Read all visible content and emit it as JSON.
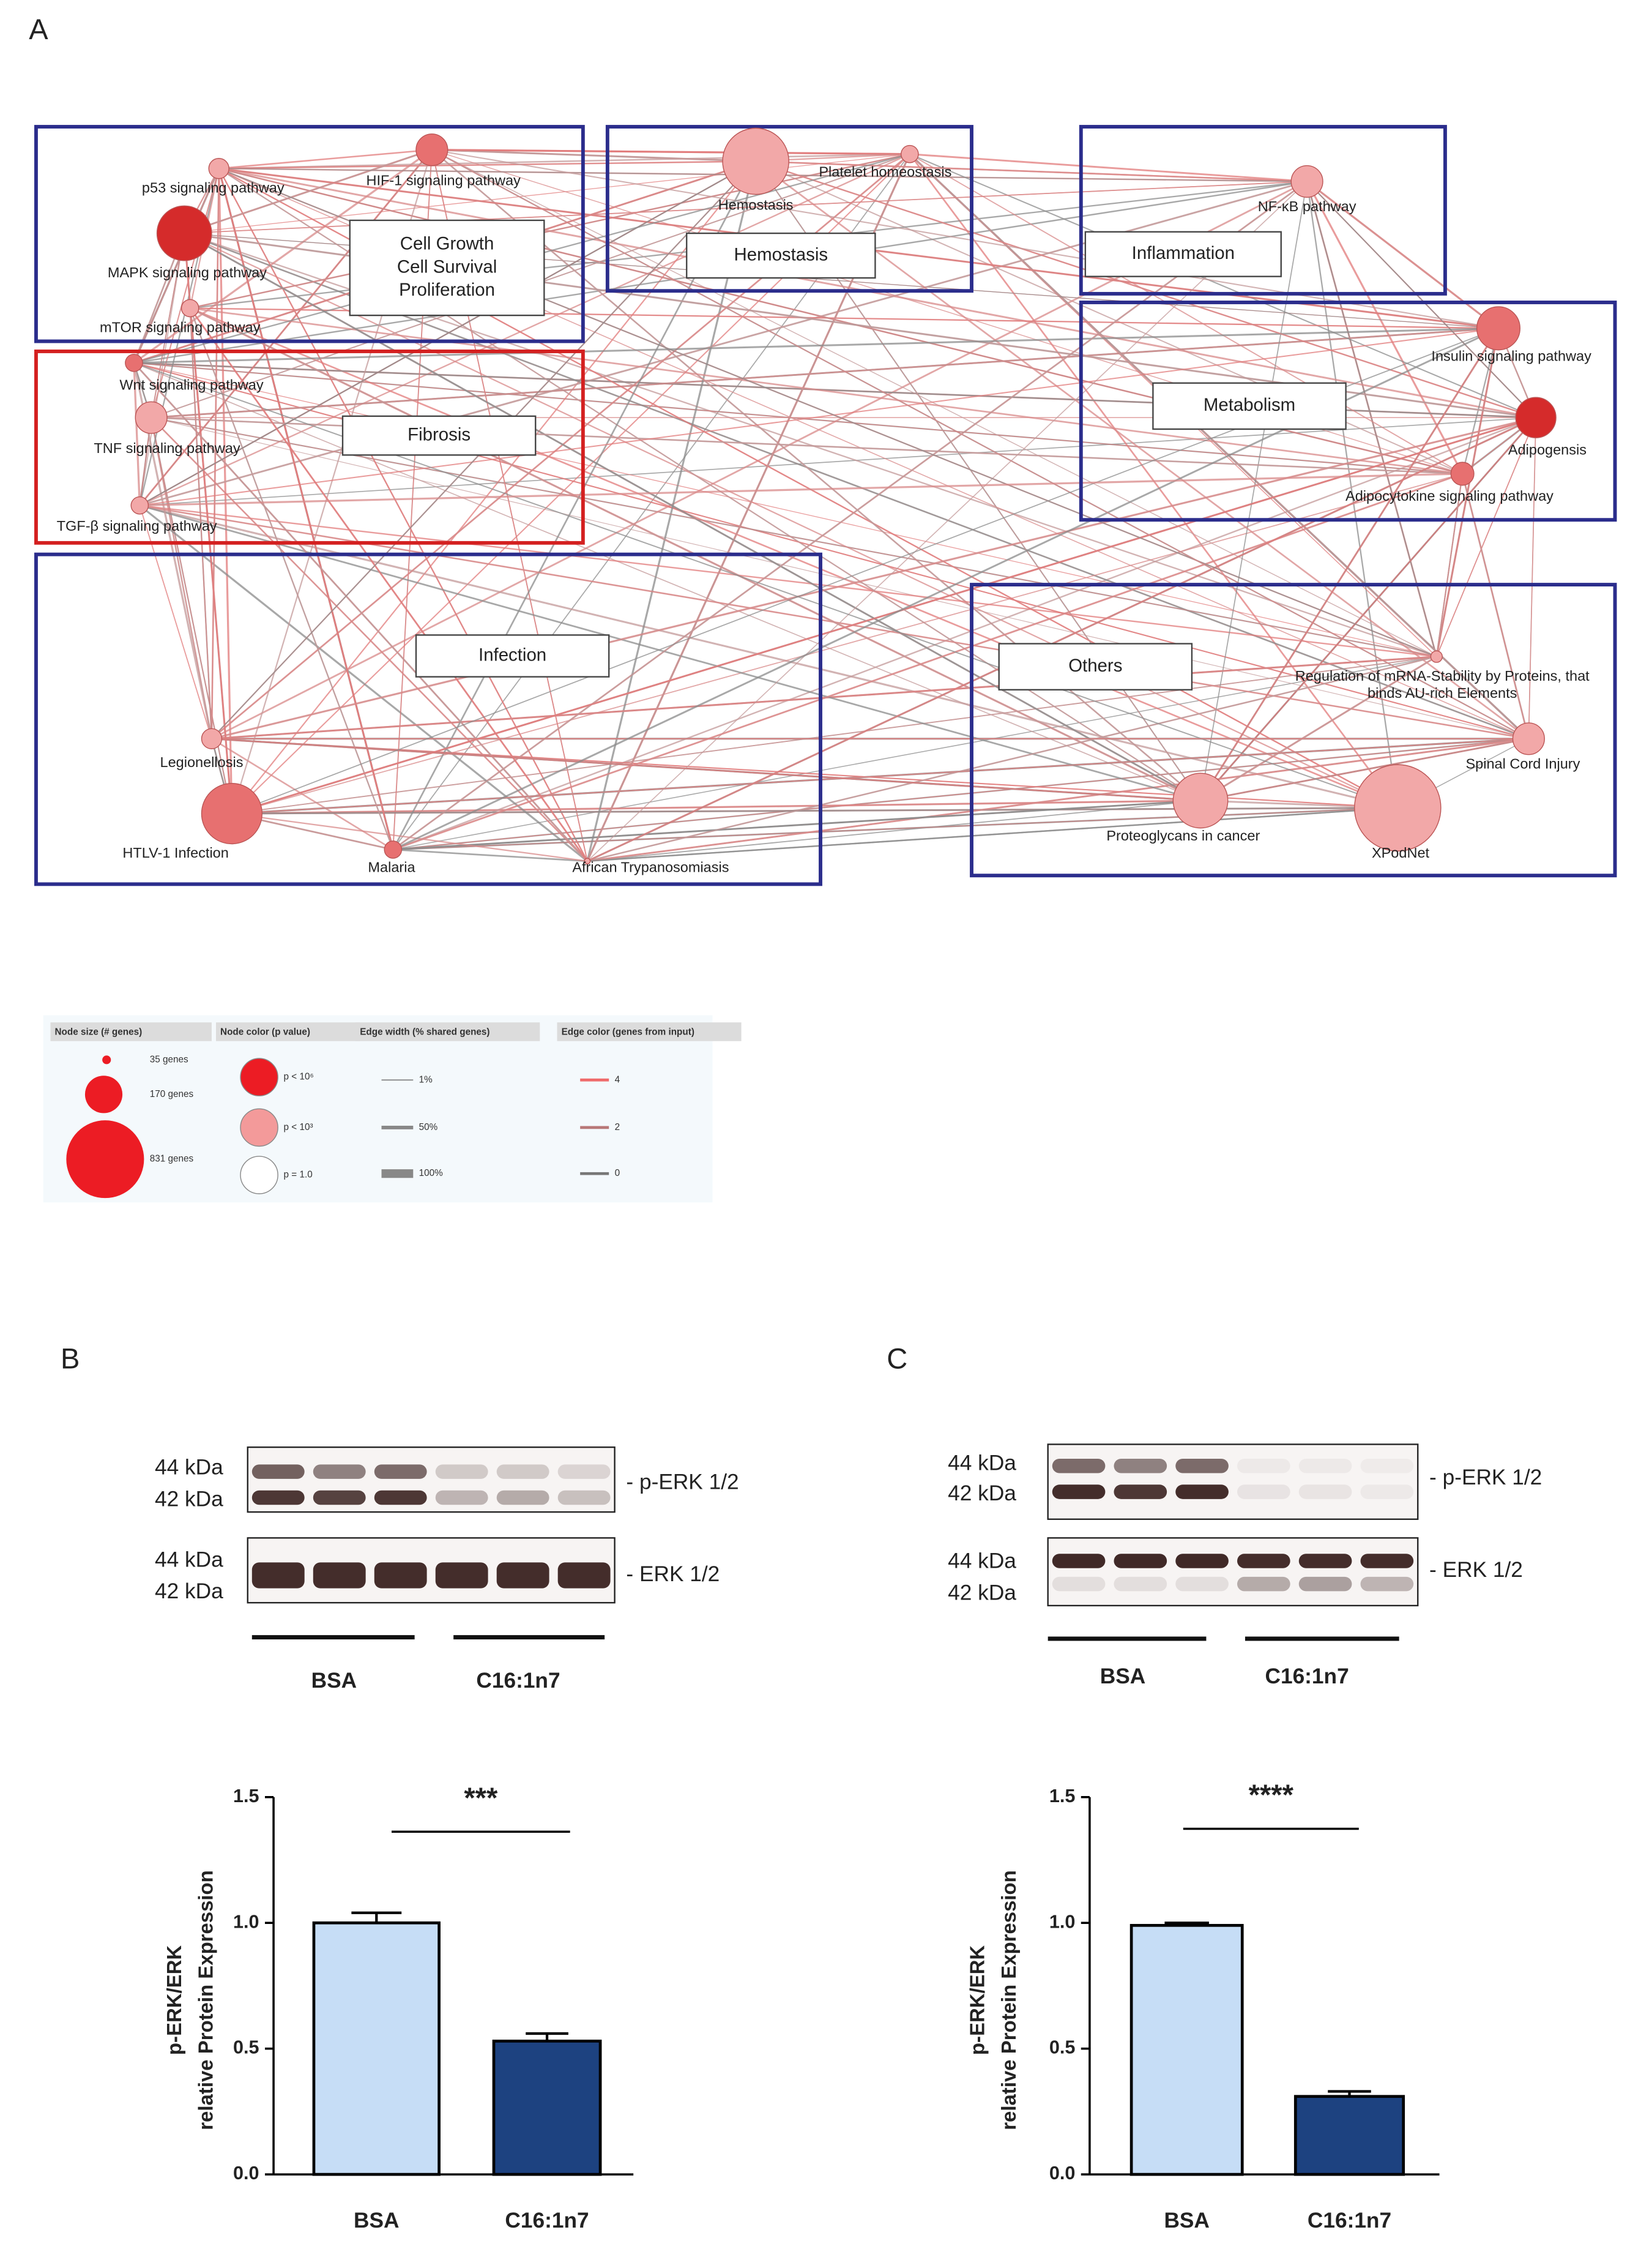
{
  "panel_labels": [
    "A",
    "B",
    "C"
  ],
  "network": {
    "groups": [
      {
        "lines": [
          "Cell Growth",
          "Cell Survival",
          "Proliferation"
        ]
      },
      {
        "lines": [
          "Hemostasis"
        ]
      },
      {
        "lines": [
          "Inflammation"
        ]
      },
      {
        "lines": [
          "Metabolism"
        ]
      },
      {
        "lines": [
          "Fibrosis"
        ]
      },
      {
        "lines": [
          "Infection"
        ]
      },
      {
        "lines": [
          "Others"
        ]
      }
    ],
    "nodes": [
      {
        "lines": [
          "p53 signaling pathway"
        ]
      },
      {
        "lines": [
          "HIF-1 signaling pathway"
        ]
      },
      {
        "lines": [
          "MAPK signaling pathway"
        ]
      },
      {
        "lines": [
          "mTOR signaling pathway"
        ]
      },
      {
        "lines": [
          "Wnt signaling pathway"
        ]
      },
      {
        "lines": [
          "TNF signaling pathway"
        ]
      },
      {
        "lines": [
          "TGF-β signaling pathway"
        ]
      },
      {
        "lines": [
          "Hemostasis"
        ]
      },
      {
        "lines": [
          "Platelet homeostasis"
        ]
      },
      {
        "lines": [
          "NF-κB pathway"
        ]
      },
      {
        "lines": [
          "Insulin signaling pathway"
        ]
      },
      {
        "lines": [
          "Adipogensis"
        ]
      },
      {
        "lines": [
          "Adipocytokine signaling pathway"
        ]
      },
      {
        "lines": [
          "Regulation of mRNA-Stability by Proteins, that",
          "binds AU-rich Elements"
        ]
      },
      {
        "lines": [
          "Spinal Cord Injury"
        ]
      },
      {
        "lines": [
          "Proteoglycans in cancer"
        ]
      },
      {
        "lines": [
          "XPodNet"
        ]
      },
      {
        "lines": [
          "Legionellosis"
        ]
      },
      {
        "lines": [
          "HTLV-1 Infection"
        ]
      },
      {
        "lines": [
          "Malaria"
        ]
      },
      {
        "lines": [
          "African Trypanosomiasis"
        ]
      }
    ]
  },
  "legend": {
    "headers": [
      "Node size (# genes)",
      "Node color (p value)",
      "Edge width (% shared genes)",
      "Edge color (genes from input)"
    ],
    "size": [
      "35 genes",
      "170 genes",
      "831 genes"
    ],
    "color": [
      "p < 10⁶",
      "p < 10³",
      "p = 1.0"
    ],
    "width": [
      "1%",
      "50%",
      "100%"
    ],
    "edge_color": [
      "4",
      "2",
      "0"
    ]
  },
  "blots": [
    {
      "markers": [
        "44 kDa",
        "42 kDa",
        "44 kDa",
        "42 kDa"
      ],
      "bands": [
        "- p-ERK 1/2",
        "- ERK 1/2"
      ],
      "groups": [
        "BSA",
        "C16:1n7"
      ]
    },
    {
      "markers": [
        "44 kDa",
        "42 kDa",
        "44 kDa",
        "42 kDa"
      ],
      "bands": [
        "- p-ERK 1/2",
        "- ERK 1/2"
      ],
      "groups": [
        "BSA",
        "C16:1n7"
      ]
    }
  ],
  "chart_data": [
    {
      "type": "bar",
      "ylabel": [
        "p-ERK/ERK",
        "relative Protein Expression"
      ],
      "categories": [
        "BSA",
        "C16:1n7"
      ],
      "values": [
        1.0,
        0.53
      ],
      "errors": [
        0.04,
        0.03
      ],
      "colors": [
        "#c6ddf6",
        "#1d4280"
      ],
      "ylim": [
        0,
        1.5
      ],
      "yticks": [
        {
          "value": 0,
          "label": "0.0"
        },
        {
          "value": 0.5,
          "label": "0.5"
        },
        {
          "value": 1,
          "label": "1.0"
        },
        {
          "value": 1.5,
          "label": "1.5"
        }
      ],
      "annotation": "***"
    },
    {
      "type": "bar",
      "ylabel": [
        "p-ERK/ERK",
        "relative Protein Expression"
      ],
      "categories": [
        "BSA",
        "C16:1n7"
      ],
      "values": [
        0.99,
        0.31
      ],
      "errors": [
        0.01,
        0.02
      ],
      "colors": [
        "#c6ddf6",
        "#1d4280"
      ],
      "ylim": [
        0,
        1.5
      ],
      "yticks": [
        {
          "value": 0,
          "label": "0.0"
        },
        {
          "value": 0.5,
          "label": "0.5"
        },
        {
          "value": 1,
          "label": "1.0"
        },
        {
          "value": 1.5,
          "label": "1.5"
        }
      ],
      "annotation": "****"
    }
  ]
}
